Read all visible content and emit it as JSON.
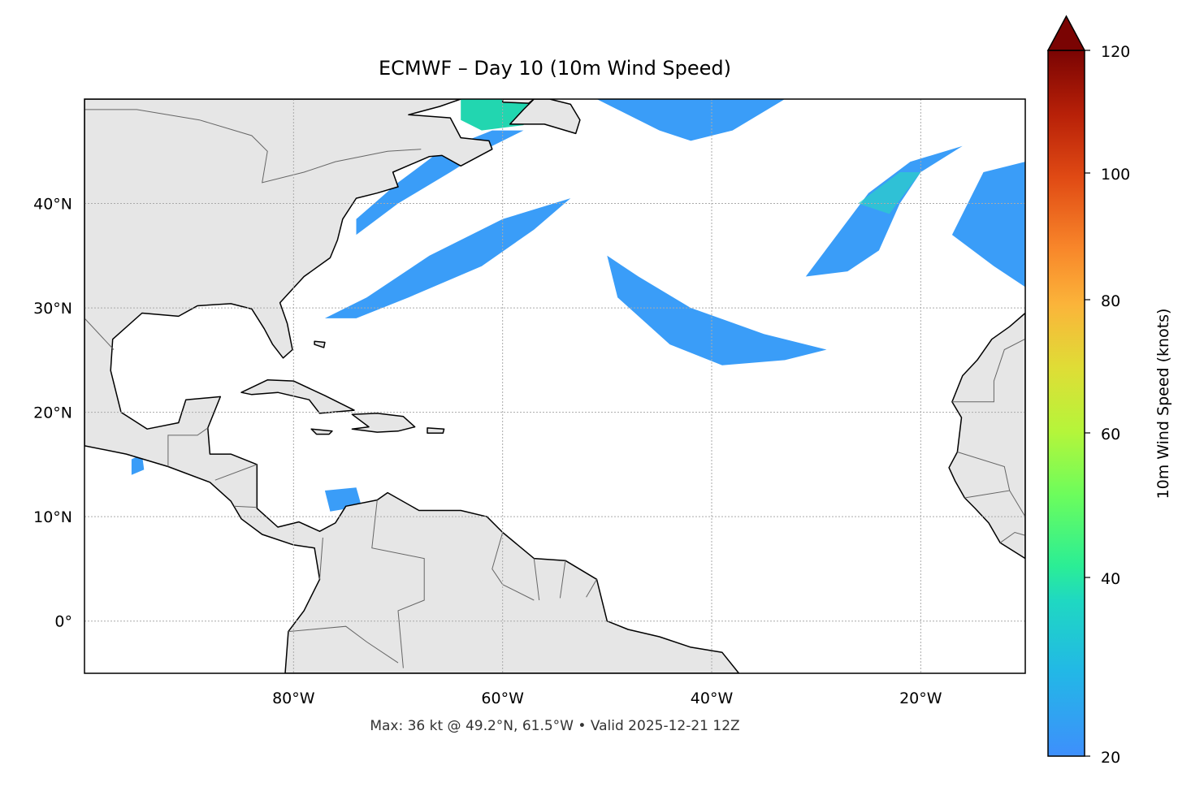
{
  "title": "ECMWF – Day 10 (10m Wind Speed)",
  "footer": "Max: 36 kt @ 49.2°N, 61.5°W • Valid 2025-12-21 12Z",
  "map": {
    "extent": {
      "lon": [
        -100,
        -10
      ],
      "lat": [
        -5,
        50
      ]
    },
    "lon_ticks": [
      {
        "value": -80,
        "label": "80°W"
      },
      {
        "value": -60,
        "label": "60°W"
      },
      {
        "value": -40,
        "label": "40°W"
      },
      {
        "value": -20,
        "label": "20°W"
      }
    ],
    "lat_ticks": [
      {
        "value": 40,
        "label": "40°N"
      },
      {
        "value": 30,
        "label": "30°N"
      },
      {
        "value": 20,
        "label": "20°N"
      },
      {
        "value": 10,
        "label": "10°N"
      },
      {
        "value": 0,
        "label": "0°"
      }
    ],
    "gridlines": true,
    "land_color": "#e6e6e6",
    "ocean_color": "#ffffff",
    "wind_color": "#3a9df8",
    "wind_strong_color": "#22d6b0"
  },
  "colorbar": {
    "label": "10m Wind Speed (knots)",
    "ticks": [
      "20",
      "40",
      "60",
      "80",
      "100",
      "120"
    ],
    "range": [
      20,
      120
    ],
    "extend": "max",
    "colormap": "turbo"
  }
}
